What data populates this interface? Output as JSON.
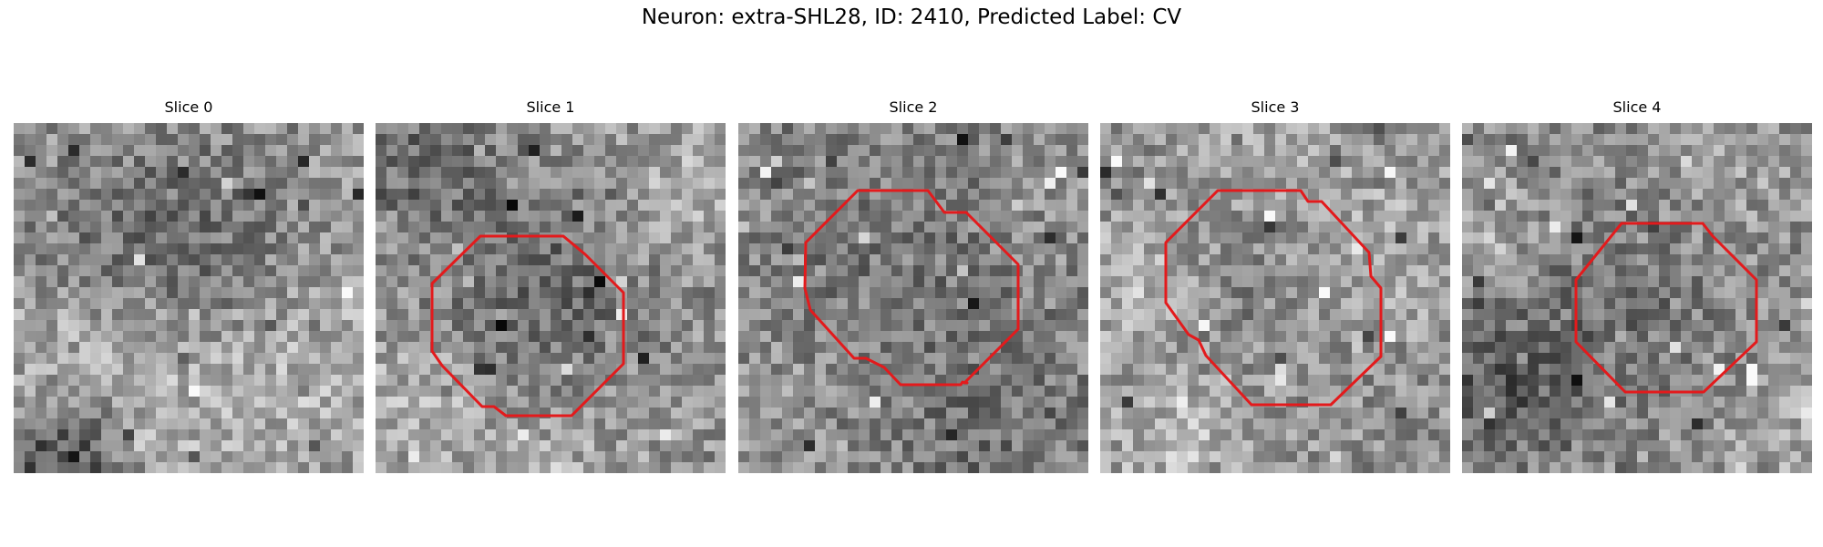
{
  "figure": {
    "title": "Neuron: extra-SHL28, ID: 2410, Predicted Label: CV",
    "outline_color": "#e31a1c",
    "colormap": "gray"
  },
  "slices": [
    {
      "title": "Slice 0",
      "has_outline": false
    },
    {
      "title": "Slice 1",
      "has_outline": true
    },
    {
      "title": "Slice 2",
      "has_outline": true
    },
    {
      "title": "Slice 3",
      "has_outline": true
    },
    {
      "title": "Slice 4",
      "has_outline": true
    }
  ]
}
